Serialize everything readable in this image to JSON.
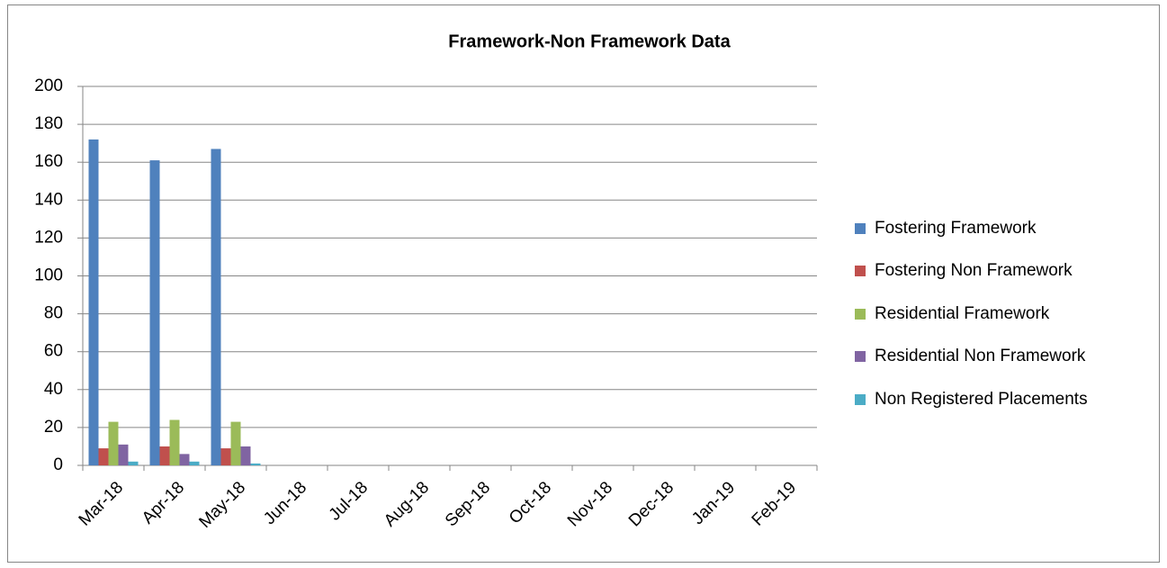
{
  "chart_data": {
    "type": "bar",
    "title": "Framework-Non Framework Data",
    "categories": [
      "Mar-18",
      "Apr-18",
      "May-18",
      "Jun-18",
      "Jul-18",
      "Aug-18",
      "Sep-18",
      "Oct-18",
      "Nov-18",
      "Dec-18",
      "Jan-19",
      "Feb-19"
    ],
    "series": [
      {
        "name": "Fostering Framework",
        "color": "#4f81bd",
        "values": [
          172,
          161,
          167,
          null,
          null,
          null,
          null,
          null,
          null,
          null,
          null,
          null
        ]
      },
      {
        "name": "Fostering Non Framework",
        "color": "#c0504d",
        "values": [
          9,
          10,
          9,
          null,
          null,
          null,
          null,
          null,
          null,
          null,
          null,
          null
        ]
      },
      {
        "name": "Residential Framework",
        "color": "#9bbb59",
        "values": [
          23,
          24,
          23,
          null,
          null,
          null,
          null,
          null,
          null,
          null,
          null,
          null
        ]
      },
      {
        "name": "Residential Non Framework",
        "color": "#8064a2",
        "values": [
          11,
          6,
          10,
          null,
          null,
          null,
          null,
          null,
          null,
          null,
          null,
          null
        ]
      },
      {
        "name": "Non Registered Placements",
        "color": "#4bacc6",
        "values": [
          2,
          2,
          1,
          null,
          null,
          null,
          null,
          null,
          null,
          null,
          null,
          null
        ]
      }
    ],
    "ylim": [
      0,
      200
    ],
    "yticks": [
      0,
      20,
      40,
      60,
      80,
      100,
      120,
      140,
      160,
      180,
      200
    ],
    "grid": true,
    "legend": "right"
  }
}
